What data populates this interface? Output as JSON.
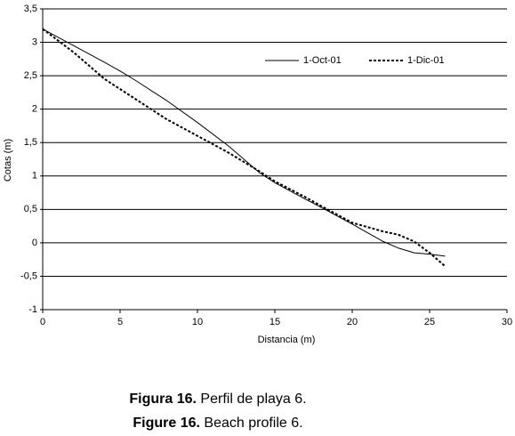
{
  "chart_data": {
    "type": "line",
    "x_label": "Distancia (m)",
    "y_label": "Cotas (m)",
    "x": [
      0,
      2,
      4,
      5,
      6,
      8,
      10,
      12,
      14,
      15,
      17,
      18,
      20,
      22,
      23,
      24,
      25,
      26
    ],
    "series": [
      {
        "name": "1-Oct-01",
        "color": "#000000",
        "dash": "none",
        "values": [
          3.2,
          2.95,
          2.7,
          2.57,
          2.43,
          2.13,
          1.8,
          1.45,
          1.05,
          0.9,
          0.65,
          0.53,
          0.28,
          0.02,
          -0.08,
          -0.15,
          -0.17,
          -0.2
        ]
      },
      {
        "name": "1-Dic-01",
        "color": "#000000",
        "dash": "3,2",
        "values": [
          3.2,
          2.85,
          2.45,
          2.3,
          2.15,
          1.85,
          1.6,
          1.35,
          1.07,
          0.92,
          0.68,
          0.55,
          0.3,
          0.17,
          0.12,
          0.02,
          -0.15,
          -0.35
        ]
      }
    ],
    "xlim": [
      0,
      30
    ],
    "xticks": [
      0,
      5,
      10,
      15,
      20,
      25,
      30
    ],
    "ylim": [
      -1,
      3.5
    ],
    "yticks": [
      -1,
      {
        "value": -0.5,
        "label": "-0,5"
      },
      0,
      {
        "value": 0.5,
        "label": "0,5"
      },
      1,
      {
        "value": 1.5,
        "label": "1,5"
      },
      2,
      {
        "value": 2.5,
        "label": "2,5"
      },
      3,
      {
        "value": 3.5,
        "label": "3,5"
      }
    ],
    "grid": true
  },
  "caption": [
    {
      "bold": "Figura 16.",
      "text": " Perfil de playa 6."
    },
    {
      "bold": "Figure 16.",
      "text": " Beach profile 6."
    }
  ]
}
